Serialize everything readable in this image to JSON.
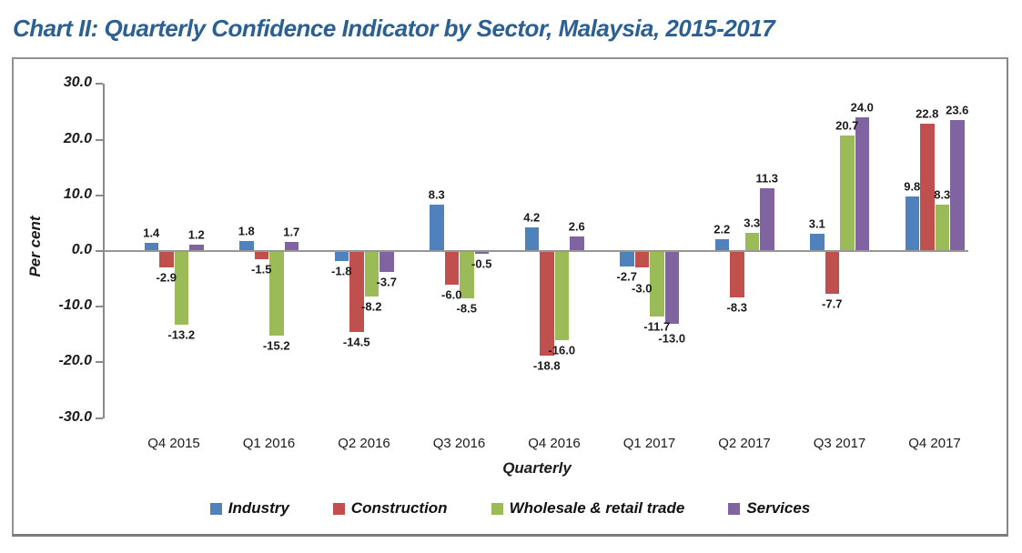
{
  "title": "Chart II: Quarterly Confidence Indicator by Sector, Malaysia, 2015-2017",
  "title_color": "#2B6095",
  "chart_data": {
    "type": "bar",
    "title": "Chart II: Quarterly Confidence Indicator by Sector, Malaysia, 2015-2017",
    "xlabel": "Quarterly",
    "ylabel": "Per cent",
    "ylim": [
      -30,
      30
    ],
    "ytick_step": 10,
    "ytick_labels": [
      "30.0",
      "20.0",
      "10.0",
      "0.0",
      "-10.0",
      "-20.0",
      "-30.0"
    ],
    "ytick_values": [
      30,
      20,
      10,
      0,
      -10,
      -20,
      -30
    ],
    "grid": false,
    "legend_position": "bottom",
    "categories": [
      "Q4 2015",
      "Q1 2016",
      "Q2 2016",
      "Q3 2016",
      "Q4 2016",
      "Q1 2017",
      "Q2 2017",
      "Q3 2017",
      "Q4 2017"
    ],
    "series": [
      {
        "name": "Industry",
        "color": "#4F81BD",
        "values": [
          1.4,
          1.8,
          -1.8,
          8.3,
          4.2,
          -2.7,
          2.2,
          3.1,
          9.8
        ]
      },
      {
        "name": "Construction",
        "color": "#C0504D",
        "values": [
          -2.9,
          -1.5,
          -14.5,
          -6.0,
          -18.8,
          -3.0,
          -8.3,
          -7.7,
          22.8
        ]
      },
      {
        "name": "Wholesale & retail trade",
        "color": "#9BBB59",
        "values": [
          -13.2,
          -15.2,
          -8.2,
          -8.5,
          -16.0,
          -11.7,
          3.3,
          20.7,
          8.3
        ]
      },
      {
        "name": "Services",
        "color": "#8064A2",
        "values": [
          1.2,
          1.7,
          -3.7,
          -0.5,
          2.6,
          -13.0,
          11.3,
          24.0,
          23.6
        ]
      }
    ],
    "data_label_decimals": 1
  }
}
